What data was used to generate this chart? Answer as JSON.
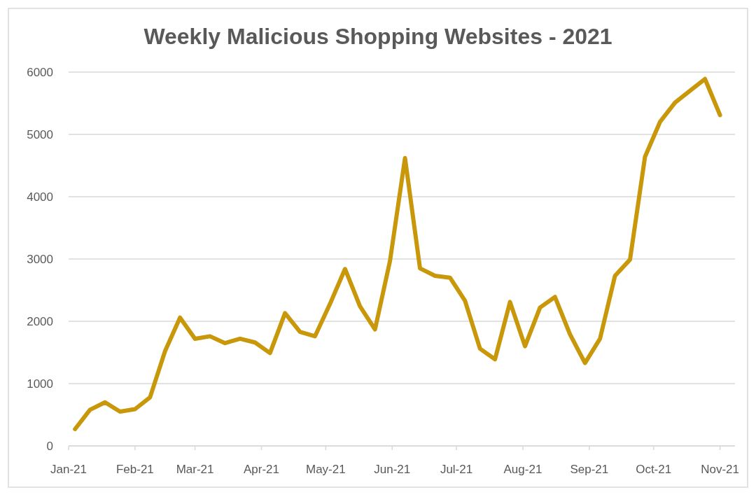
{
  "chart_data": {
    "type": "line",
    "title": "Weekly Malicious Shopping Websites - 2021",
    "x": [
      "2021-01-04",
      "2021-01-11",
      "2021-01-18",
      "2021-01-25",
      "2021-02-01",
      "2021-02-08",
      "2021-02-15",
      "2021-02-22",
      "2021-03-01",
      "2021-03-08",
      "2021-03-15",
      "2021-03-22",
      "2021-03-29",
      "2021-04-05",
      "2021-04-12",
      "2021-04-19",
      "2021-04-26",
      "2021-05-03",
      "2021-05-10",
      "2021-05-17",
      "2021-05-24",
      "2021-05-31",
      "2021-06-07",
      "2021-06-14",
      "2021-06-21",
      "2021-06-28",
      "2021-07-05",
      "2021-07-12",
      "2021-07-19",
      "2021-07-26",
      "2021-08-02",
      "2021-08-09",
      "2021-08-16",
      "2021-08-23",
      "2021-08-30",
      "2021-09-06",
      "2021-09-13",
      "2021-09-20",
      "2021-09-27",
      "2021-10-04",
      "2021-10-11",
      "2021-10-18",
      "2021-10-25",
      "2021-11-01"
    ],
    "series": [
      {
        "color": "#c8980a",
        "values": [
          270,
          580,
          700,
          550,
          590,
          780,
          1520,
          2060,
          1720,
          1760,
          1650,
          1720,
          1660,
          1490,
          2130,
          1830,
          1760,
          2280,
          2840,
          2240,
          1870,
          2970,
          4620,
          2850,
          2730,
          2700,
          2330,
          1560,
          1390,
          2310,
          1600,
          2220,
          2390,
          1790,
          1330,
          1720,
          2730,
          2990,
          4640,
          5200,
          5510,
          5700,
          5890,
          5310
        ]
      }
    ],
    "xlim": [
      "2021-01-01",
      "2021-11-08"
    ],
    "xticks": [
      {
        "value": "2021-01-01",
        "label": "Jan-21"
      },
      {
        "value": "2021-02-01",
        "label": "Feb-21"
      },
      {
        "value": "2021-03-01",
        "label": "Mar-21"
      },
      {
        "value": "2021-04-01",
        "label": "Apr-21"
      },
      {
        "value": "2021-05-01",
        "label": "May-21"
      },
      {
        "value": "2021-06-01",
        "label": "Jun-21"
      },
      {
        "value": "2021-07-01",
        "label": "Jul-21"
      },
      {
        "value": "2021-08-01",
        "label": "Aug-21"
      },
      {
        "value": "2021-09-01",
        "label": "Sep-21"
      },
      {
        "value": "2021-10-01",
        "label": "Oct-21"
      },
      {
        "value": "2021-11-01",
        "label": "Nov-21"
      }
    ],
    "ylim": [
      0,
      6000
    ],
    "yticks": [
      0,
      1000,
      2000,
      3000,
      4000,
      5000,
      6000
    ],
    "grid": "y"
  }
}
